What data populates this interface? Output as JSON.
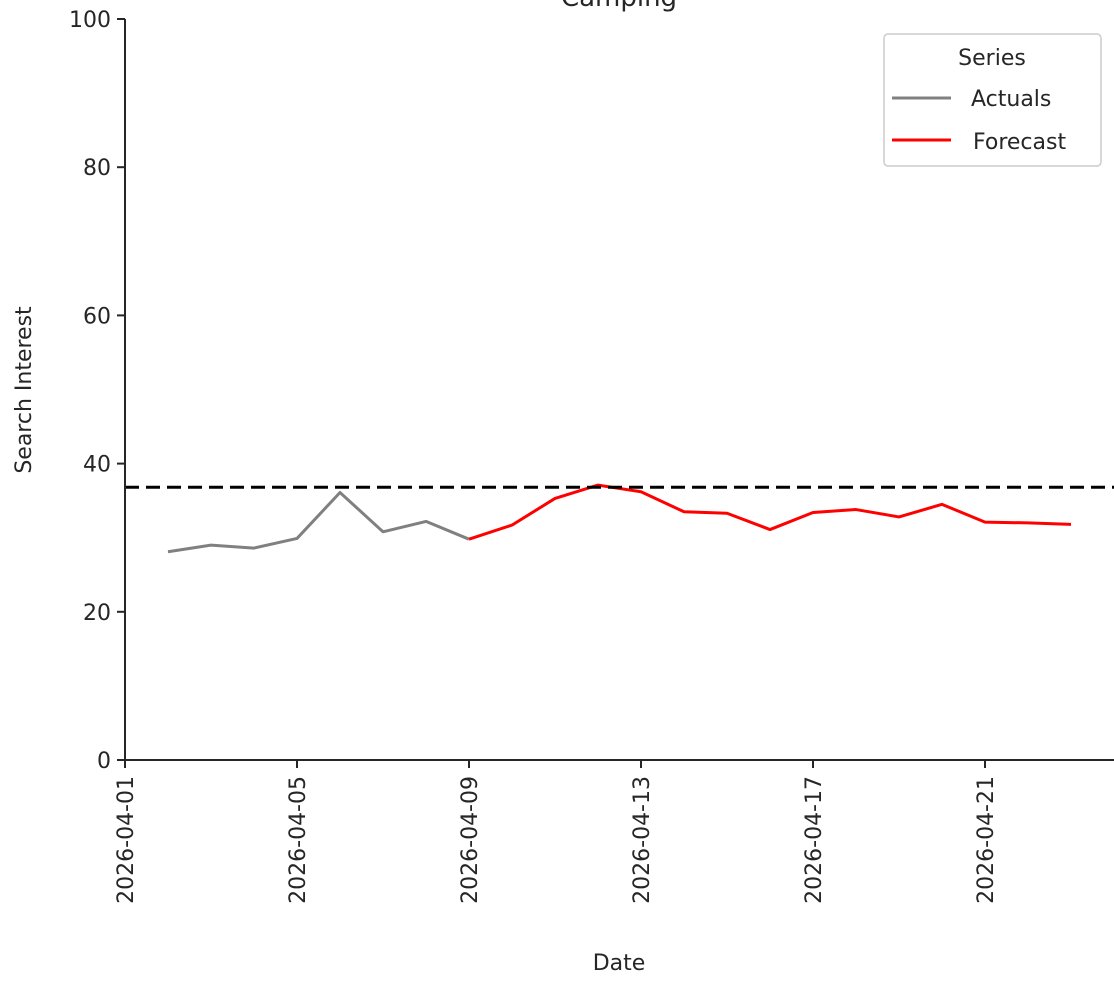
{
  "chart_data": {
    "type": "line",
    "title": "Camping",
    "xlabel": "Date",
    "ylabel": "Search Interest",
    "ylim": [
      0,
      100
    ],
    "xlim": [
      "2026-04-01",
      "2026-04-24"
    ],
    "grid": false,
    "x_ticks": [
      "2026-04-01",
      "2026-04-05",
      "2026-04-09",
      "2026-04-13",
      "2026-04-17",
      "2026-04-21"
    ],
    "y_ticks": [
      0,
      20,
      40,
      60,
      80,
      100
    ],
    "legend": {
      "title": "Series",
      "position": "top-right"
    },
    "series": [
      {
        "name": "Actuals",
        "color": "#808080",
        "x": [
          "2026-04-02",
          "2026-04-03",
          "2026-04-04",
          "2026-04-05",
          "2026-04-06",
          "2026-04-07",
          "2026-04-08",
          "2026-04-09"
        ],
        "values": [
          28.1,
          29.0,
          28.6,
          29.9,
          36.1,
          30.8,
          32.2,
          29.8
        ]
      },
      {
        "name": "Forecast",
        "color": "#ff0000",
        "x": [
          "2026-04-09",
          "2026-04-10",
          "2026-04-11",
          "2026-04-12",
          "2026-04-13",
          "2026-04-14",
          "2026-04-15",
          "2026-04-16",
          "2026-04-17",
          "2026-04-18",
          "2026-04-19",
          "2026-04-20",
          "2026-04-21",
          "2026-04-22",
          "2026-04-23"
        ],
        "values": [
          29.8,
          31.7,
          35.3,
          37.1,
          36.2,
          33.5,
          33.3,
          31.1,
          33.4,
          33.8,
          32.8,
          34.5,
          32.1,
          32.0,
          31.8
        ]
      }
    ],
    "reference_line": {
      "y": 36.8,
      "style": "dashed",
      "color": "#000000"
    }
  }
}
